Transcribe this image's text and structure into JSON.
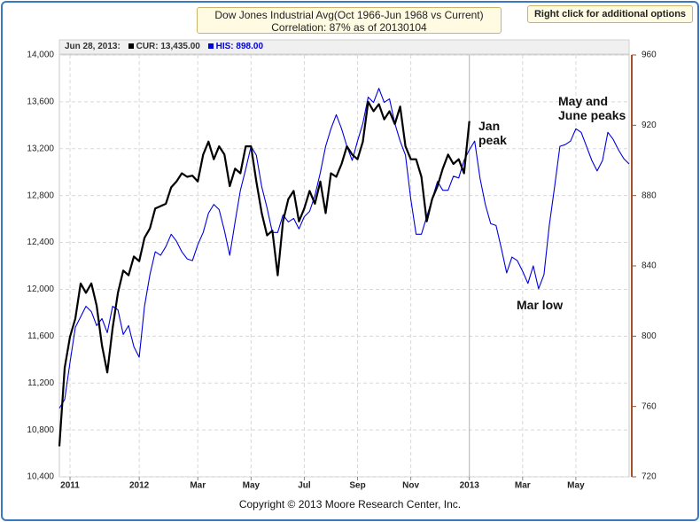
{
  "chart_data": {
    "type": "line",
    "title": "Dow Jones Industrial Avg(Oct 1966-Jun 1968 vs Current)",
    "subtitle": "Correlation: 87% as of 20130104",
    "options_button": "Right click for additional options",
    "readout": {
      "date": "Jun 28, 2013:",
      "items": [
        "CUR: 13,435.00",
        "HIS: 898.00"
      ]
    },
    "copyright": "Copyright © 2013 Moore Research Center, Inc.",
    "categories": [
      null,
      null,
      "2011",
      null,
      null,
      null,
      null,
      null,
      null,
      null,
      null,
      null,
      null,
      null,
      null,
      "2012",
      null,
      null,
      null,
      null,
      null,
      null,
      null,
      null,
      null,
      null,
      "Mar",
      null,
      null,
      null,
      null,
      null,
      null,
      null,
      null,
      null,
      "May",
      null,
      null,
      null,
      null,
      null,
      null,
      null,
      null,
      null,
      "Jul",
      null,
      null,
      null,
      null,
      null,
      null,
      null,
      null,
      null,
      "Sep",
      null,
      null,
      null,
      null,
      null,
      null,
      null,
      null,
      null,
      "Nov",
      null,
      null,
      null,
      null,
      null,
      null,
      null,
      null,
      null,
      null,
      "2013",
      null,
      null,
      null,
      null,
      null,
      null,
      null,
      null,
      null,
      "Mar",
      null,
      null,
      null,
      null,
      null,
      null,
      null,
      null,
      null,
      "May",
      null,
      null,
      null,
      null,
      null,
      null,
      null,
      null,
      null,
      null
    ],
    "series": [
      {
        "color": "#000000",
        "axis": "y",
        "values": [
          10660,
          11330,
          11595,
          11750,
          12050,
          11970,
          12050,
          11860,
          11520,
          11290,
          11670,
          11970,
          12160,
          12120,
          12280,
          12240,
          12440,
          12520,
          12690,
          12710,
          12730,
          12870,
          12920,
          12990,
          12960,
          12970,
          12920,
          13150,
          13260,
          13110,
          13220,
          13150,
          12880,
          13030,
          12990,
          13220,
          13220,
          12920,
          12650,
          12460,
          12500,
          12120,
          12580,
          12770,
          12840,
          12580,
          12690,
          12840,
          12730,
          12920,
          12650,
          12990,
          12960,
          13070,
          13220,
          13150,
          13110,
          13260,
          13600,
          13520,
          13580,
          13450,
          13520,
          13410,
          13560,
          13220,
          13110,
          13110,
          12960,
          12580,
          12770,
          12880,
          13030,
          13150,
          13070,
          13110,
          12990,
          13435,
          null,
          null,
          null,
          null,
          null,
          null,
          null,
          null,
          null,
          null,
          null,
          null,
          null,
          null,
          null,
          null,
          null,
          null,
          null,
          null,
          null,
          null,
          null,
          null,
          null,
          null,
          null,
          null,
          null,
          null
        ]
      },
      {
        "color": "#0000dd",
        "axis": "y2",
        "values": [
          759,
          764,
          785,
          805,
          811,
          817,
          814,
          806,
          810,
          802,
          817,
          815,
          801,
          806,
          794,
          788,
          817,
          835,
          848,
          846,
          851,
          858,
          854,
          848,
          844,
          843,
          852,
          859,
          870,
          875,
          872,
          860,
          846,
          865,
          883,
          895,
          908,
          903,
          885,
          873,
          859,
          859,
          869,
          865,
          867,
          861,
          868,
          871,
          880,
          893,
          908,
          918,
          926,
          918,
          908,
          900,
          911,
          921,
          936,
          933,
          941,
          933,
          935,
          921,
          911,
          903,
          878,
          858,
          858,
          868,
          878,
          888,
          883,
          883,
          891,
          890,
          900,
          906,
          911,
          890,
          875,
          864,
          863,
          850,
          836,
          845,
          843,
          837,
          830,
          840,
          827,
          835,
          863,
          885,
          908,
          909,
          911,
          918,
          916,
          908,
          900,
          894,
          900,
          916,
          912,
          906,
          901,
          898
        ]
      }
    ],
    "ylim": [
      10400,
      14000
    ],
    "yticks": [
      {
        "value": 10400,
        "label": "10,400"
      },
      {
        "value": 10800,
        "label": "10,800"
      },
      {
        "value": 11200,
        "label": "11,200"
      },
      {
        "value": 11600,
        "label": "11,600"
      },
      {
        "value": 12000,
        "label": "12,000"
      },
      {
        "value": 12400,
        "label": "12,400"
      },
      {
        "value": 12800,
        "label": "12,800"
      },
      {
        "value": 13200,
        "label": "13,200"
      },
      {
        "value": 13600,
        "label": "13,600"
      },
      {
        "value": 14000,
        "label": "14,000"
      }
    ],
    "y2lim": [
      720,
      960
    ],
    "y2ticks": [
      720,
      760,
      800,
      840,
      880,
      920,
      960
    ],
    "grid": true,
    "annotations": [
      {
        "lines": [
          "Jan",
          "peak"
        ]
      },
      {
        "lines": [
          "Mar low"
        ]
      },
      {
        "lines": [
          "May and",
          "June peaks"
        ]
      }
    ]
  }
}
